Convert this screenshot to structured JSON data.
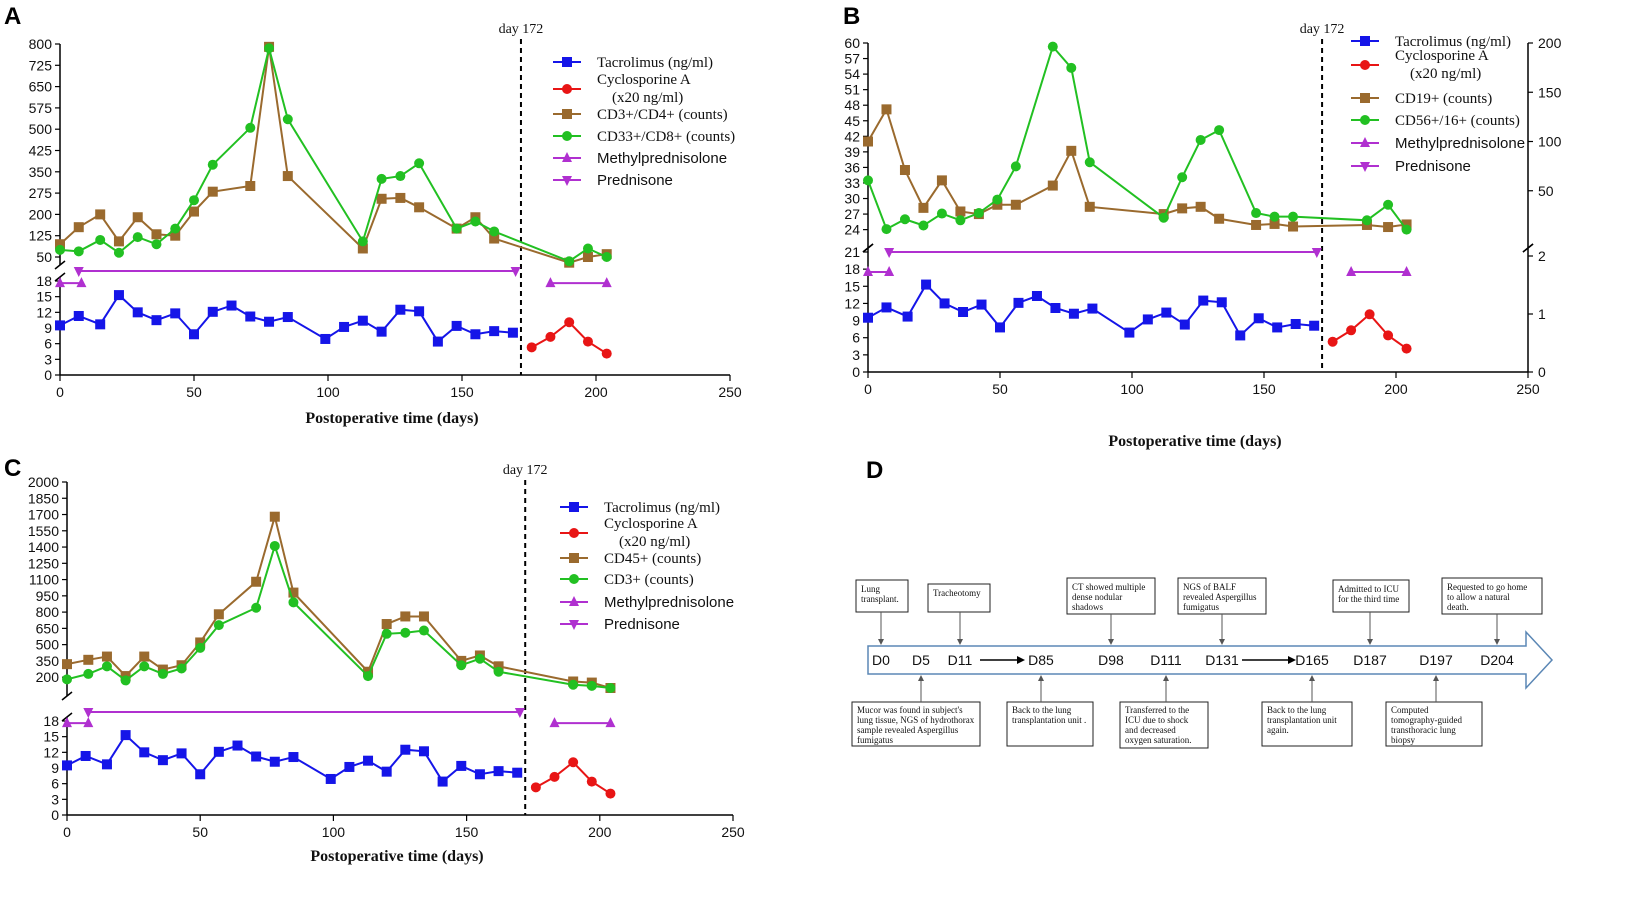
{
  "chart_data": [
    {
      "panel": "A",
      "type": "line",
      "x_label": "Postoperative time (days)",
      "x_ticks": [
        "0",
        "50",
        "100",
        "150",
        "200",
        "250"
      ],
      "x_range": [
        0,
        250
      ],
      "upper_axis_ticks": [
        "50",
        "125",
        "200",
        "275",
        "350",
        "425",
        "500",
        "575",
        "650",
        "725",
        "800"
      ],
      "upper_range": [
        50,
        800
      ],
      "lower_axis_ticks": [
        "0",
        "3",
        "6",
        "9",
        "12",
        "15",
        "18"
      ],
      "lower_range": [
        0,
        18
      ],
      "day_marker": {
        "label": "day 172",
        "x": 172
      },
      "legend": [
        {
          "label": "Tacrolimus (ng/ml)",
          "font": "serif",
          "color": "#1515e8",
          "marker": "square"
        },
        {
          "label": "Cyclosporine A\n(x20 ng/ml)",
          "font": "serif",
          "color": "#e81515",
          "marker": "circle"
        },
        {
          "label": "CD3+/CD4+ (counts)",
          "font": "serif",
          "color": "#9a6a2e",
          "marker": "square"
        },
        {
          "label": "CD33+/CD8+ (counts)",
          "font": "serif",
          "color": "#22c022",
          "marker": "circle"
        },
        {
          "label": "Methylprednisolone",
          "font": "sans",
          "color": "#b030d0",
          "marker": "triangle-up"
        },
        {
          "label": "Prednisone",
          "font": "sans",
          "color": "#b030d0",
          "marker": "triangle-down"
        }
      ],
      "series": [
        {
          "name": "Tacrolimus",
          "axis": "lower",
          "color": "#1515e8",
          "marker": "square",
          "x": [
            0,
            7,
            15,
            22,
            29,
            36,
            43,
            50,
            57,
            64,
            71,
            78,
            85,
            99,
            106,
            113,
            120,
            127,
            134,
            141,
            148,
            155,
            162,
            169
          ],
          "y": [
            9.5,
            11.3,
            9.7,
            15.3,
            12.0,
            10.5,
            11.8,
            7.8,
            12.1,
            13.3,
            11.2,
            10.2,
            11.1,
            6.9,
            9.2,
            10.4,
            8.3,
            12.5,
            12.2,
            6.4,
            9.4,
            7.8,
            8.4,
            8.1
          ]
        },
        {
          "name": "Cyclosporine A",
          "axis": "lower",
          "color": "#e81515",
          "marker": "circle",
          "x": [
            176,
            183,
            190,
            197,
            204
          ],
          "y": [
            5.3,
            7.3,
            10.1,
            6.4,
            4.1
          ]
        },
        {
          "name": "CD3+/CD4+",
          "axis": "upper",
          "color": "#9a6a2e",
          "marker": "square",
          "x": [
            0,
            7,
            15,
            22,
            29,
            36,
            43,
            50,
            57,
            71,
            78,
            85,
            113,
            120,
            127,
            134,
            148,
            155,
            162,
            190,
            197,
            204
          ],
          "y": [
            95,
            155,
            200,
            105,
            190,
            130,
            125,
            210,
            280,
            300,
            790,
            335,
            80,
            255,
            258,
            225,
            150,
            190,
            115,
            30,
            50,
            60
          ]
        },
        {
          "name": "CD33+/CD8+",
          "axis": "upper",
          "color": "#22c022",
          "marker": "circle",
          "x": [
            0,
            7,
            15,
            22,
            29,
            36,
            43,
            50,
            57,
            71,
            78,
            85,
            113,
            120,
            127,
            134,
            148,
            155,
            162,
            190,
            197,
            204
          ],
          "y": [
            75,
            70,
            110,
            65,
            120,
            95,
            150,
            250,
            375,
            505,
            785,
            535,
            105,
            325,
            335,
            380,
            150,
            175,
            140,
            35,
            80,
            50
          ]
        },
        {
          "name": "Methylprednisolone",
          "axis": "lower",
          "color": "#b030d0",
          "marker": "triangle-up",
          "segments": [
            [
              0,
              8,
              17.6
            ],
            [
              183,
              204,
              17.6
            ]
          ]
        },
        {
          "name": "Prednisone",
          "axis": "break",
          "color": "#b030d0",
          "marker": "triangle-down",
          "segments": [
            [
              7,
              170,
              "break"
            ]
          ]
        }
      ]
    },
    {
      "panel": "B",
      "type": "line",
      "x_label": "Postoperative time (days)",
      "x_ticks": [
        "0",
        "50",
        "100",
        "150",
        "200",
        "250"
      ],
      "x_range": [
        0,
        250
      ],
      "upper_axis_ticks": [
        "24",
        "27",
        "30",
        "33",
        "36",
        "39",
        "42",
        "45",
        "48",
        "51",
        "54",
        "57",
        "60"
      ],
      "upper_range": [
        22,
        60
      ],
      "lower_axis_ticks": [
        "0",
        "3",
        "6",
        "9",
        "12",
        "15",
        "18",
        "21"
      ],
      "lower_range": [
        0,
        21
      ],
      "right_upper_ticks": [
        "50",
        "100",
        "150",
        "200"
      ],
      "right_upper_range": [
        0,
        200
      ],
      "right_lower_ticks": [
        "0",
        "1",
        "2"
      ],
      "right_lower_range": [
        0,
        2
      ],
      "day_marker": {
        "label": "day 172",
        "x": 172
      },
      "legend": [
        {
          "label": "Tacrolimus (ng/ml)",
          "font": "serif",
          "color": "#1515e8",
          "marker": "square"
        },
        {
          "label": "Cyclosporine A\n(x20 ng/ml)",
          "font": "serif",
          "color": "#e81515",
          "marker": "circle"
        },
        {
          "label": "CD19+ (counts)",
          "font": "serif",
          "color": "#9a6a2e",
          "marker": "square"
        },
        {
          "label": "CD56+/16+ (counts)",
          "font": "serif",
          "color": "#22c022",
          "marker": "circle"
        },
        {
          "label": "Methylprednisolone",
          "font": "sans",
          "color": "#b030d0",
          "marker": "triangle-up"
        },
        {
          "label": "Prednisone",
          "font": "sans",
          "color": "#b030d0",
          "marker": "triangle-down"
        }
      ],
      "series": [
        {
          "name": "Tacrolimus",
          "axis": "lower",
          "color": "#1515e8",
          "marker": "square",
          "x": [
            0,
            7,
            15,
            22,
            29,
            36,
            43,
            50,
            57,
            64,
            71,
            78,
            85,
            99,
            106,
            113,
            120,
            127,
            134,
            141,
            148,
            155,
            162,
            169
          ],
          "y": [
            9.5,
            11.3,
            9.7,
            15.3,
            12.0,
            10.5,
            11.8,
            7.8,
            12.1,
            13.3,
            11.2,
            10.2,
            11.1,
            6.9,
            9.2,
            10.4,
            8.3,
            12.5,
            12.2,
            6.4,
            9.4,
            7.8,
            8.4,
            8.1
          ]
        },
        {
          "name": "Cyclosporine A",
          "axis": "lower",
          "color": "#e81515",
          "marker": "circle",
          "x": [
            176,
            183,
            190,
            197,
            204
          ],
          "y": [
            5.3,
            7.3,
            10.1,
            6.4,
            4.1
          ]
        },
        {
          "name": "CD19+",
          "axis": "upper",
          "color": "#9a6a2e",
          "marker": "square",
          "x": [
            0,
            7,
            14,
            21,
            28,
            35,
            42,
            49,
            56,
            70,
            77,
            84,
            112,
            119,
            126,
            133,
            147,
            154,
            161,
            189,
            197,
            204
          ],
          "y": [
            41,
            47.2,
            35.5,
            28.2,
            33.5,
            27.5,
            27.0,
            28.8,
            28.8,
            32.5,
            39.2,
            28.4,
            27.0,
            28.1,
            28.4,
            26.1,
            24.9,
            25.1,
            24.6,
            24.9,
            24.5,
            25.0
          ]
        },
        {
          "name": "CD56+/16+",
          "axis": "upper",
          "color": "#22c022",
          "marker": "circle",
          "x": [
            0,
            7,
            14,
            21,
            28,
            35,
            42,
            49,
            56,
            70,
            77,
            84,
            112,
            119,
            126,
            133,
            147,
            154,
            161,
            189,
            197,
            204
          ],
          "y": [
            33.5,
            24.1,
            26.0,
            24.8,
            27.1,
            25.8,
            27.2,
            29.8,
            36.2,
            59.3,
            55.2,
            37.0,
            26.3,
            34.1,
            41.3,
            43.2,
            27.2,
            26.5,
            26.5,
            25.8,
            28.8,
            24.0
          ]
        },
        {
          "name": "Methylprednisolone",
          "axis": "lower",
          "color": "#b030d0",
          "marker": "triangle-up",
          "segments": [
            [
              0,
              8,
              17.5
            ],
            [
              183,
              204,
              17.5
            ]
          ]
        },
        {
          "name": "Prednisone",
          "axis": "lower",
          "color": "#b030d0",
          "marker": "triangle-down",
          "segments": [
            [
              8,
              170,
              21
            ]
          ]
        }
      ]
    },
    {
      "panel": "C",
      "type": "line",
      "x_label": "Postoperative time (days)",
      "x_ticks": [
        "0",
        "50",
        "100",
        "150",
        "200",
        "250"
      ],
      "x_range": [
        0,
        250
      ],
      "upper_axis_ticks": [
        "200",
        "350",
        "500",
        "650",
        "800",
        "950",
        "1100",
        "1250",
        "1400",
        "1550",
        "1700",
        "1850",
        "2000"
      ],
      "upper_range": [
        100,
        2000
      ],
      "lower_axis_ticks": [
        "0",
        "3",
        "6",
        "9",
        "12",
        "15",
        "18"
      ],
      "lower_range": [
        0,
        18
      ],
      "day_marker": {
        "label": "day 172",
        "x": 172
      },
      "legend": [
        {
          "label": "Tacrolimus (ng/ml)",
          "font": "serif",
          "color": "#1515e8",
          "marker": "square"
        },
        {
          "label": "Cyclosporine A\n(x20 ng/ml)",
          "font": "serif",
          "color": "#e81515",
          "marker": "circle"
        },
        {
          "label": "CD45+ (counts)",
          "font": "serif",
          "color": "#9a6a2e",
          "marker": "square"
        },
        {
          "label": "CD3+ (counts)",
          "font": "serif",
          "color": "#22c022",
          "marker": "circle"
        },
        {
          "label": "Methylprednisolone",
          "font": "sans",
          "color": "#b030d0",
          "marker": "triangle-up"
        },
        {
          "label": "Prednisone",
          "font": "sans",
          "color": "#b030d0",
          "marker": "triangle-down"
        }
      ],
      "series": [
        {
          "name": "Tacrolimus",
          "axis": "lower",
          "color": "#1515e8",
          "marker": "square",
          "x": [
            0,
            7,
            15,
            22,
            29,
            36,
            43,
            50,
            57,
            64,
            71,
            78,
            85,
            99,
            106,
            113,
            120,
            127,
            134,
            141,
            148,
            155,
            162,
            169
          ],
          "y": [
            9.5,
            11.3,
            9.7,
            15.3,
            12.0,
            10.5,
            11.8,
            7.8,
            12.1,
            13.3,
            11.2,
            10.2,
            11.1,
            6.9,
            9.2,
            10.4,
            8.3,
            12.5,
            12.2,
            6.4,
            9.4,
            7.8,
            8.4,
            8.1
          ]
        },
        {
          "name": "Cyclosporine A",
          "axis": "lower",
          "color": "#e81515",
          "marker": "circle",
          "x": [
            176,
            183,
            190,
            197,
            204
          ],
          "y": [
            5.3,
            7.3,
            10.1,
            6.4,
            4.1
          ]
        },
        {
          "name": "CD45+",
          "axis": "upper",
          "color": "#9a6a2e",
          "marker": "square",
          "x": [
            0,
            8,
            15,
            22,
            29,
            36,
            43,
            50,
            57,
            71,
            78,
            85,
            113,
            120,
            127,
            134,
            148,
            155,
            162,
            190,
            197,
            204
          ],
          "y": [
            320,
            360,
            390,
            210,
            390,
            270,
            310,
            520,
            780,
            1080,
            1680,
            980,
            250,
            690,
            760,
            760,
            350,
            400,
            300,
            160,
            150,
            100
          ]
        },
        {
          "name": "CD3+",
          "axis": "upper",
          "color": "#22c022",
          "marker": "circle",
          "x": [
            0,
            8,
            15,
            22,
            29,
            36,
            43,
            50,
            57,
            71,
            78,
            85,
            113,
            120,
            127,
            134,
            148,
            155,
            162,
            190,
            197,
            204
          ],
          "y": [
            180,
            230,
            300,
            170,
            300,
            230,
            280,
            470,
            680,
            840,
            1410,
            890,
            210,
            600,
            610,
            630,
            310,
            370,
            250,
            130,
            120,
            100
          ]
        },
        {
          "name": "Methylprednisolone",
          "axis": "lower",
          "color": "#b030d0",
          "marker": "triangle-up",
          "segments": [
            [
              0,
              8,
              17.6
            ],
            [
              183,
              204,
              17.6
            ]
          ]
        },
        {
          "name": "Prednisone",
          "axis": "break",
          "color": "#b030d0",
          "marker": "triangle-down",
          "segments": [
            [
              8,
              170,
              "break"
            ]
          ]
        }
      ]
    },
    {
      "panel": "D",
      "type": "timeline",
      "days": [
        "D0",
        "D5",
        "D11",
        "D85",
        "D98",
        "D111",
        "D131",
        "D165",
        "D187",
        "D197",
        "D204"
      ],
      "top_notes": [
        {
          "day_index": 0,
          "lines": [
            "Lung",
            "transplant."
          ]
        },
        {
          "day_index": 2,
          "lines": [
            "Tracheotomy"
          ]
        },
        {
          "day_index": 4,
          "lines": [
            "CT showed multiple",
            "dense nodular",
            "shadows"
          ]
        },
        {
          "day_index": 6,
          "lines": [
            "NGS of BALF",
            "revealed Aspergillus",
            "fumigatus"
          ]
        },
        {
          "day_index": 8,
          "lines": [
            "Admitted to ICU",
            "for the third time"
          ]
        },
        {
          "day_index": 10,
          "lines": [
            "Requested to go home",
            "to allow a natural",
            "death."
          ]
        }
      ],
      "bottom_notes": [
        {
          "day_index": 1,
          "lines": [
            "Mucor was found in subject's",
            "lung tissue, NGS of hydrothorax",
            "sample revealed Aspergillus",
            "fumigatus"
          ]
        },
        {
          "day_index": 3,
          "lines": [
            "Back to the lung",
            "transplantation unit ."
          ]
        },
        {
          "day_index": 5,
          "lines": [
            "Transferred to the",
            "ICU due to shock",
            "and decreased",
            "oxygen saturation."
          ]
        },
        {
          "day_index": 7,
          "lines": [
            "Back to the lung",
            "transplantation unit",
            "again."
          ]
        },
        {
          "day_index": 9,
          "lines": [
            "Computed",
            "tomography-guided",
            "transthoracic lung",
            "biopsy"
          ]
        }
      ],
      "arrows_between": [
        [
          2,
          3
        ],
        [
          6,
          7
        ]
      ],
      "colors": {
        "arrow_stroke": "#5b87b5",
        "box_stroke": "#222222"
      }
    }
  ],
  "panel_letters": {
    "A": "A",
    "B": "B",
    "C": "C",
    "D": "D"
  },
  "colors": {
    "tacrolimus": "#1515e8",
    "cyclosporine": "#e81515",
    "brown": "#9a6a2e",
    "green": "#22c022",
    "purple": "#b030d0"
  }
}
